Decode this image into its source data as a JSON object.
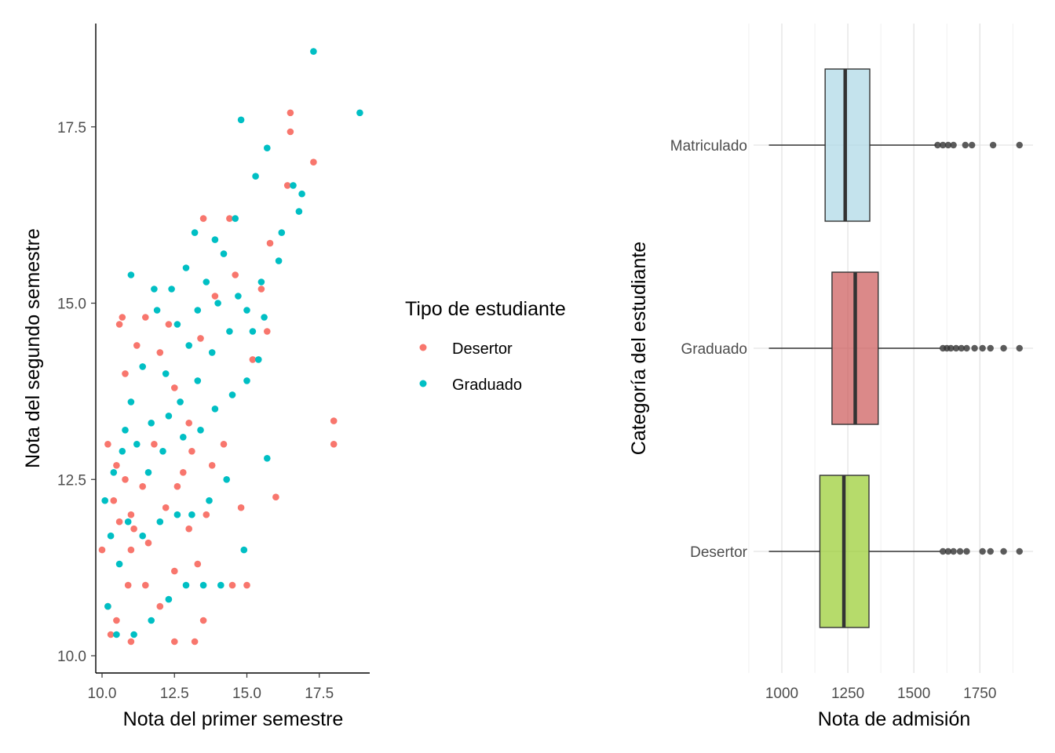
{
  "chart_data": [
    {
      "type": "scatter",
      "title": "",
      "xlabel": "Nota del primer semestre",
      "ylabel": "Nota del segundo semestre",
      "xlim": [
        9.8,
        19.3
      ],
      "ylim": [
        9.7,
        18.9
      ],
      "xticks": [
        "10.0",
        "12.5",
        "15.0",
        "17.5"
      ],
      "yticks": [
        "10.0",
        "12.5",
        "15.0",
        "17.5"
      ],
      "grid": false,
      "legend": {
        "title": "Tipo de estudiante",
        "placement": "right",
        "entries": [
          {
            "label": "Desertor",
            "color": "#F8766D"
          },
          {
            "label": "Graduado",
            "color": "#00BFC4"
          }
        ]
      },
      "series": [
        {
          "name": "Desertor",
          "color": "#F8766D",
          "points": [
            [
              16.5,
              17.7
            ],
            [
              16.5,
              17.43
            ],
            [
              17.3,
              17.0
            ],
            [
              18.0,
              13.33
            ],
            [
              18.0,
              13.0
            ],
            [
              16.4,
              16.67
            ],
            [
              16.0,
              12.25
            ],
            [
              14.4,
              16.2
            ],
            [
              13.5,
              16.2
            ],
            [
              15.8,
              15.85
            ],
            [
              15.5,
              15.2
            ],
            [
              15.7,
              14.6
            ],
            [
              15.2,
              14.2
            ],
            [
              14.6,
              15.4
            ],
            [
              13.9,
              15.1
            ],
            [
              13.0,
              13.3
            ],
            [
              12.5,
              13.8
            ],
            [
              12.0,
              14.3
            ],
            [
              11.5,
              14.8
            ],
            [
              10.7,
              14.8
            ],
            [
              10.6,
              14.7
            ],
            [
              11.2,
              14.4
            ],
            [
              10.8,
              14.0
            ],
            [
              12.3,
              14.7
            ],
            [
              13.4,
              14.5
            ],
            [
              14.2,
              13.0
            ],
            [
              13.8,
              12.7
            ],
            [
              14.8,
              12.1
            ],
            [
              15.0,
              11.0
            ],
            [
              14.5,
              11.0
            ],
            [
              13.6,
              12.0
            ],
            [
              13.3,
              11.3
            ],
            [
              13.5,
              10.5
            ],
            [
              13.2,
              10.2
            ],
            [
              12.5,
              10.2
            ],
            [
              11.0,
              10.2
            ],
            [
              10.3,
              10.3
            ],
            [
              10.5,
              10.5
            ],
            [
              10.2,
              10.7
            ],
            [
              10.0,
              11.5
            ],
            [
              10.2,
              13.0
            ],
            [
              10.5,
              12.7
            ],
            [
              10.8,
              12.5
            ],
            [
              11.0,
              12.0
            ],
            [
              11.0,
              11.5
            ],
            [
              11.5,
              11.0
            ],
            [
              12.0,
              10.7
            ],
            [
              12.5,
              11.2
            ],
            [
              13.0,
              11.8
            ],
            [
              12.8,
              12.6
            ],
            [
              11.8,
              13.0
            ],
            [
              11.4,
              12.4
            ],
            [
              11.1,
              11.8
            ],
            [
              10.9,
              11.0
            ],
            [
              12.2,
              12.1
            ],
            [
              12.6,
              12.4
            ],
            [
              13.1,
              12.9
            ],
            [
              11.6,
              11.6
            ],
            [
              10.6,
              11.9
            ],
            [
              10.4,
              12.2
            ]
          ]
        },
        {
          "name": "Graduado",
          "color": "#00BFC4",
          "points": [
            [
              17.3,
              18.57
            ],
            [
              18.9,
              17.7
            ],
            [
              14.8,
              17.6
            ],
            [
              15.7,
              17.2
            ],
            [
              16.6,
              16.67
            ],
            [
              16.9,
              16.55
            ],
            [
              16.2,
              16.0
            ],
            [
              15.3,
              16.8
            ],
            [
              14.6,
              16.2
            ],
            [
              13.9,
              15.9
            ],
            [
              13.2,
              16.0
            ],
            [
              12.9,
              15.5
            ],
            [
              12.4,
              15.2
            ],
            [
              11.8,
              15.2
            ],
            [
              11.0,
              15.4
            ],
            [
              11.9,
              14.9
            ],
            [
              12.6,
              14.7
            ],
            [
              13.3,
              14.9
            ],
            [
              14.0,
              15.0
            ],
            [
              14.7,
              15.1
            ],
            [
              15.2,
              14.6
            ],
            [
              15.6,
              14.8
            ],
            [
              15.4,
              14.2
            ],
            [
              15.0,
              13.9
            ],
            [
              14.5,
              13.7
            ],
            [
              13.9,
              13.5
            ],
            [
              13.4,
              13.2
            ],
            [
              12.8,
              13.1
            ],
            [
              12.3,
              13.4
            ],
            [
              11.7,
              13.3
            ],
            [
              11.2,
              13.0
            ],
            [
              10.8,
              13.2
            ],
            [
              10.4,
              12.6
            ],
            [
              10.1,
              12.2
            ],
            [
              10.3,
              11.7
            ],
            [
              10.6,
              11.3
            ],
            [
              10.2,
              10.7
            ],
            [
              10.5,
              10.3
            ],
            [
              11.1,
              10.3
            ],
            [
              11.7,
              10.5
            ],
            [
              12.3,
              10.8
            ],
            [
              12.9,
              11.0
            ],
            [
              13.5,
              11.0
            ],
            [
              14.1,
              11.0
            ],
            [
              14.9,
              11.5
            ],
            [
              15.7,
              12.8
            ],
            [
              14.3,
              12.5
            ],
            [
              13.7,
              12.2
            ],
            [
              13.1,
              12.0
            ],
            [
              12.6,
              12.0
            ],
            [
              12.0,
              11.9
            ],
            [
              11.4,
              11.7
            ],
            [
              11.6,
              12.6
            ],
            [
              12.1,
              12.9
            ],
            [
              12.7,
              13.6
            ],
            [
              13.3,
              13.9
            ],
            [
              13.8,
              14.3
            ],
            [
              14.4,
              14.6
            ],
            [
              15.0,
              14.9
            ],
            [
              15.5,
              15.3
            ],
            [
              16.1,
              15.6
            ],
            [
              16.8,
              16.3
            ],
            [
              14.2,
              15.7
            ],
            [
              13.6,
              15.3
            ],
            [
              13.0,
              14.4
            ],
            [
              12.2,
              14.0
            ],
            [
              11.4,
              14.1
            ],
            [
              11.0,
              13.6
            ],
            [
              10.7,
              12.9
            ],
            [
              10.9,
              11.9
            ]
          ]
        }
      ]
    },
    {
      "type": "box",
      "title": "",
      "xlabel": "Nota de admisión",
      "ylabel": "Categoría del estudiante",
      "xlim": [
        946,
        1957
      ],
      "xticks": [
        "1000",
        "1250",
        "1500",
        "1750"
      ],
      "grid": true,
      "categories": [
        "Matriculado",
        "Graduado",
        "Desertor"
      ],
      "boxes": [
        {
          "category": "Matriculado",
          "color": "#ADD8E6",
          "whisker_low": 951,
          "q1": 1164,
          "median": 1240,
          "q3": 1333,
          "whisker_high": 1585,
          "outliers": [
            1590,
            1610,
            1630,
            1650,
            1695,
            1720,
            1800,
            1900
          ]
        },
        {
          "category": "Graduado",
          "color": "#CD5C5C",
          "whisker_low": 951,
          "q1": 1190,
          "median": 1278,
          "q3": 1365,
          "whisker_high": 1600,
          "outliers": [
            1610,
            1625,
            1640,
            1660,
            1680,
            1700,
            1730,
            1760,
            1790,
            1840,
            1900
          ]
        },
        {
          "category": "Desertor",
          "color": "#9ACD32",
          "whisker_low": 951,
          "q1": 1144,
          "median": 1235,
          "q3": 1330,
          "whisker_high": 1600,
          "outliers": [
            1610,
            1630,
            1650,
            1675,
            1700,
            1760,
            1790,
            1840,
            1900
          ]
        }
      ]
    }
  ]
}
